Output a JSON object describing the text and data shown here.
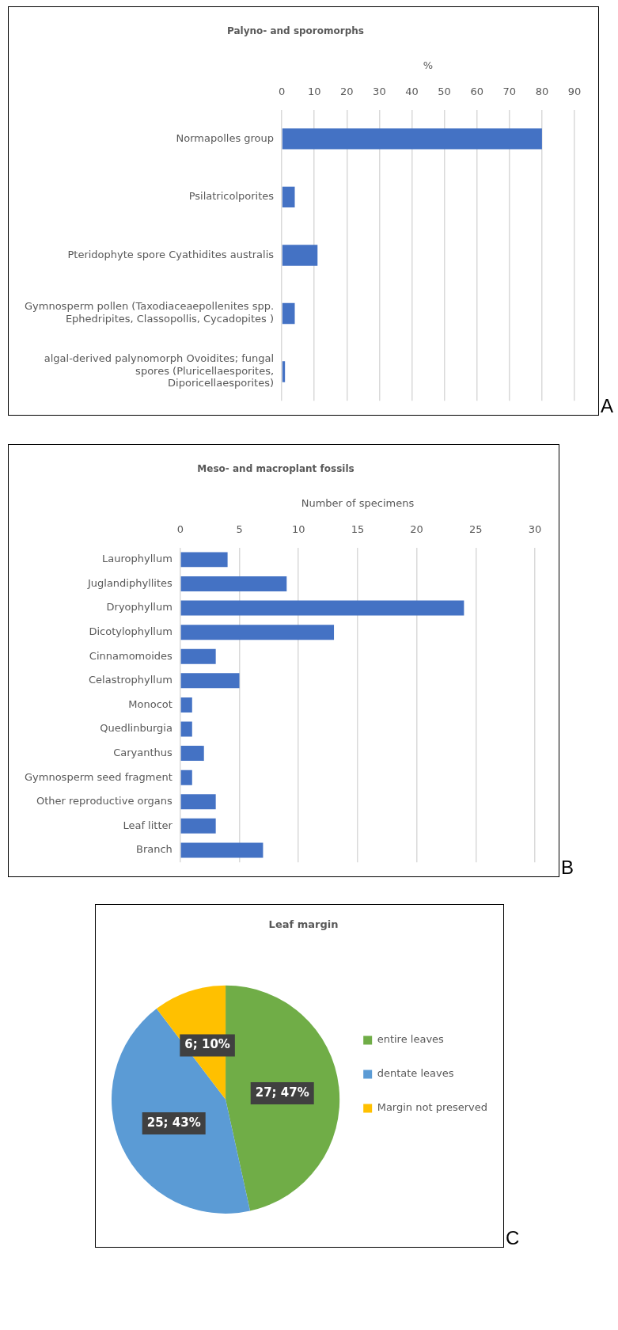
{
  "chart_data": [
    {
      "type": "bar",
      "orientation": "horizontal",
      "title": "Palyno- and sporomorphs",
      "xlabel": "%",
      "categories": [
        "Normapolles group",
        "Psilatricolporites",
        "Pteridophyte spore Cyathidites australis",
        "Gymnosperm pollen (Taxodiaceaepollenites spp. Ephedripites, Classopollis, Cycadopites )",
        "algal-derived palynomorph Ovoidites; fungal spores (Pluricellaesporites, Diporicellaesporites)"
      ],
      "values": [
        80,
        4,
        11,
        4,
        1
      ],
      "color": "#4472c4",
      "xlim": [
        0,
        90
      ],
      "xticks": [
        0,
        10,
        20,
        30,
        40,
        50,
        60,
        70,
        80,
        90
      ],
      "grid": "x",
      "legend": false,
      "annotations": [
        "A"
      ]
    },
    {
      "type": "bar",
      "orientation": "horizontal",
      "title": "Meso- and macroplant fossils",
      "xlabel": "Number of specimens",
      "categories": [
        "Laurophyllum",
        "Juglandiphyllites",
        "Dryophyllum",
        "Dicotylophyllum",
        "Cinnamomoides",
        "Celastrophyllum",
        "Monocot",
        "Quedlinburgia",
        "Caryanthus",
        "Gymnosperm seed fragment",
        "Other reproductive organs",
        "Leaf litter",
        "Branch"
      ],
      "values": [
        4,
        9,
        24,
        13,
        3,
        5,
        1,
        1,
        2,
        1,
        3,
        3,
        7
      ],
      "color": "#4472c4",
      "xlim": [
        0,
        30
      ],
      "xticks": [
        0,
        5,
        10,
        15,
        20,
        25,
        30
      ],
      "grid": "x",
      "legend": false,
      "annotations": [
        "B"
      ]
    },
    {
      "type": "pie",
      "title": "Leaf margin",
      "categories": [
        "entire leaves",
        "dentate leaves",
        "Margin not preserved"
      ],
      "values": [
        27,
        25,
        6
      ],
      "value_labels": [
        "27; 47%",
        "25; 43%",
        "6; 10%"
      ],
      "colors": [
        "#70ad47",
        "#5b9bd5",
        "#ffc000"
      ],
      "legend": "right",
      "annotations": [
        "C"
      ]
    }
  ]
}
